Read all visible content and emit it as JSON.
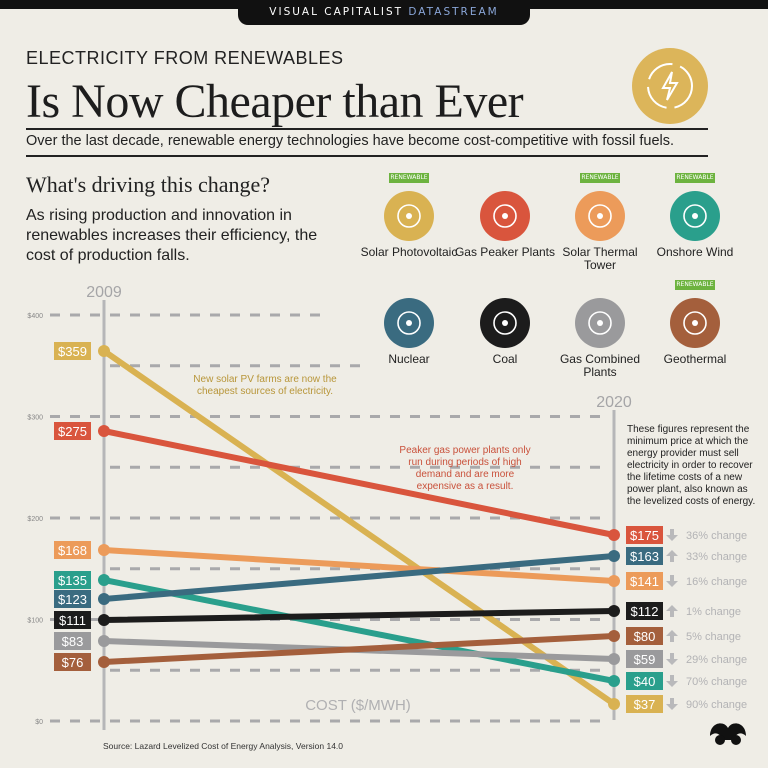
{
  "header": {
    "brand": "VISUAL CAPITALIST",
    "brand_accent": "DATASTREAM",
    "kicker": "ELECTRICITY FROM RENEWABLES",
    "title": "Is Now Cheaper than Ever",
    "subtitle": "Over the last decade, renewable energy technologies have become cost-competitive with fossil fuels.",
    "logo_icon": "lightning-cycle-icon"
  },
  "intro": {
    "question": "What's driving this change?",
    "text": "As rising production and innovation in renewables increases their efficiency, the cost of production falls."
  },
  "legend": [
    {
      "label": "Solar Photovoltaic",
      "color": "#d9b252",
      "renewable": true,
      "icon": "solar-panel-icon"
    },
    {
      "label": "Gas Peaker Plants",
      "color": "#d9553d",
      "renewable": false,
      "icon": "gas-pipe-icon"
    },
    {
      "label": "Solar Thermal Tower",
      "color": "#ec9b5a",
      "renewable": true,
      "icon": "solar-thermal-icon"
    },
    {
      "label": "Onshore Wind",
      "color": "#2a9f8c",
      "renewable": true,
      "icon": "wind-turbine-icon"
    },
    {
      "label": "Nuclear",
      "color": "#3a6b80",
      "renewable": false,
      "icon": "radiation-icon"
    },
    {
      "label": "Coal",
      "color": "#1c1c1c",
      "renewable": false,
      "icon": "coal-cart-icon"
    },
    {
      "label": "Gas Combined Plants",
      "color": "#9a9a9c",
      "renewable": false,
      "icon": "gas-plant-icon"
    },
    {
      "label": "Geothermal",
      "color": "#a45f3c",
      "renewable": true,
      "icon": "geothermal-icon"
    }
  ],
  "renewable_badge": "RENEWABLE",
  "notes": {
    "solar": "New solar PV farms are now the cheapest sources of electricity.",
    "peaker": "Peaker gas power plants only run during periods of high demand and are more expensive as a result.",
    "lcoe": "These figures represent the minimum price at which the energy provider must sell electricity in order to recover the lifetime costs of a new power plant, also known as the levelized costs of energy."
  },
  "source": "Source: Lazard Levelized Cost of Energy Analysis, Version 14.0",
  "chart_data": {
    "type": "slope",
    "x": [
      "2009",
      "2020"
    ],
    "ylabel": "COST ($/MWH)",
    "ylim": [
      0,
      400
    ],
    "yticks": [
      "$0",
      "$100",
      "$200",
      "$300",
      "$400"
    ],
    "grid": true,
    "series": [
      {
        "name": "Solar Photovoltaic",
        "values": [
          359,
          37
        ],
        "labels": [
          "$359",
          "$37"
        ],
        "change": "90% change",
        "direction": "down",
        "color": "#d9b252"
      },
      {
        "name": "Gas Peaker Plants",
        "values": [
          275,
          175
        ],
        "labels": [
          "$275",
          "$175"
        ],
        "change": "36% change",
        "direction": "down",
        "color": "#d9553d"
      },
      {
        "name": "Solar Thermal Tower",
        "values": [
          168,
          141
        ],
        "labels": [
          "$168",
          "$141"
        ],
        "change": "16% change",
        "direction": "down",
        "color": "#ec9b5a"
      },
      {
        "name": "Onshore Wind",
        "values": [
          135,
          40
        ],
        "labels": [
          "$135",
          "$40"
        ],
        "change": "70% change",
        "direction": "down",
        "color": "#2a9f8c"
      },
      {
        "name": "Nuclear",
        "values": [
          123,
          163
        ],
        "labels": [
          "$123",
          "$163"
        ],
        "change": "33% change",
        "direction": "up",
        "color": "#3a6b80"
      },
      {
        "name": "Coal",
        "values": [
          111,
          112
        ],
        "labels": [
          "$111",
          "$112"
        ],
        "change": "1% change",
        "direction": "up",
        "color": "#1c1c1c"
      },
      {
        "name": "Gas Combined Plants",
        "values": [
          83,
          59
        ],
        "labels": [
          "$83",
          "$59"
        ],
        "change": "29% change",
        "direction": "down",
        "color": "#9a9a9c"
      },
      {
        "name": "Geothermal",
        "values": [
          76,
          80
        ],
        "labels": [
          "$76",
          "$80"
        ],
        "change": "5% change",
        "direction": "up",
        "color": "#a45f3c"
      }
    ]
  }
}
